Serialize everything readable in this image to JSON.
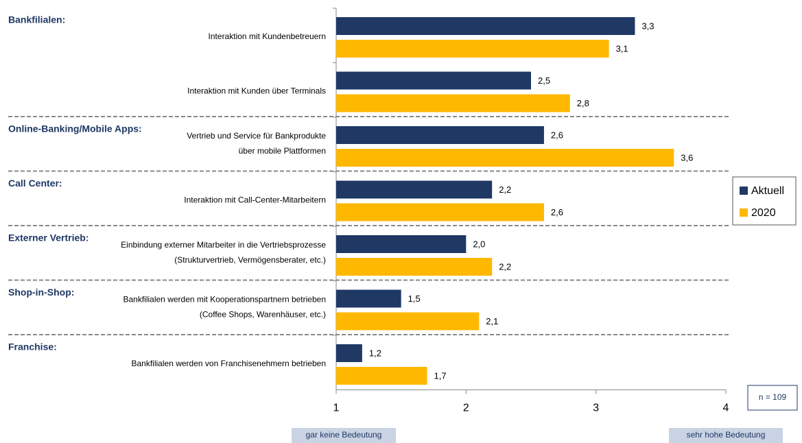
{
  "chart_data": {
    "type": "bar",
    "orientation": "horizontal",
    "group_labels": [
      "Bankfilialen:",
      null,
      "Online-Banking/Mobile Apps:",
      "Call Center:",
      "Externer Vertrieb:",
      "Shop-in-Shop:",
      "Franchise:"
    ],
    "categories": [
      [
        "Interaktion mit Kundenbetreuern"
      ],
      [
        "Interaktion mit Kunden über Terminals"
      ],
      [
        "Vertrieb und Service für Bankprodukte",
        "über mobile Plattformen"
      ],
      [
        "Interaktion mit Call-Center-Mitarbeitern"
      ],
      [
        "Einbindung externer Mitarbeiter in die Vertriebsprozesse",
        "(Strukturvertrieb, Vermögensberater, etc.)"
      ],
      [
        "Bankfilialen werden mit Kooperationspartnern betrieben",
        "(Coffee Shops, Warenhäuser, etc.)"
      ],
      [
        "Bankfilialen werden von Franchisenehmern betrieben"
      ]
    ],
    "series": [
      {
        "name": "Aktuell",
        "color": "#1f3864",
        "values": [
          3.3,
          2.5,
          2.6,
          2.2,
          2.0,
          1.5,
          1.2
        ],
        "value_labels": [
          "3,3",
          "2,5",
          "2,6",
          "2,2",
          "2,0",
          "1,5",
          "1,2"
        ]
      },
      {
        "name": "2020",
        "color": "#ffb800",
        "values": [
          3.1,
          2.8,
          3.6,
          2.6,
          2.2,
          2.1,
          1.7
        ],
        "value_labels": [
          "3,1",
          "2,8",
          "3,6",
          "2,6",
          "2,2",
          "2,1",
          "1,7"
        ]
      }
    ],
    "xlim": [
      1,
      4
    ],
    "xticks": [
      1,
      2,
      3,
      4
    ],
    "legend": "right",
    "annotations": [
      "n = 109",
      "gar keine Bedeutung",
      "sehr hohe Bedeutung"
    ]
  }
}
